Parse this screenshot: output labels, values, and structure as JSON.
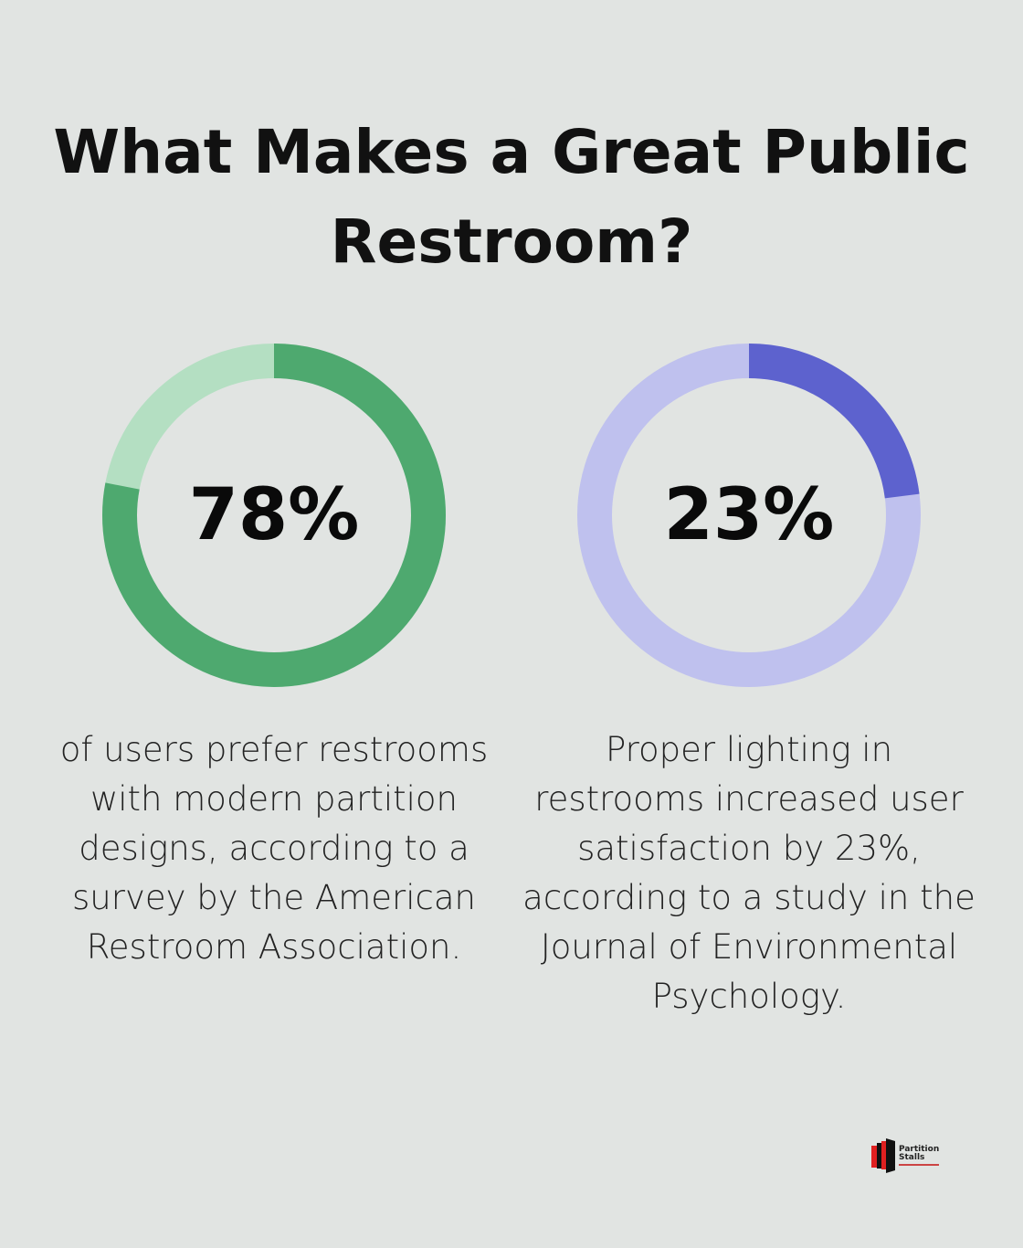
{
  "title": "What Makes a Great Public Restroom?",
  "chart_data": [
    {
      "type": "pie",
      "variant": "donut",
      "label": "78%",
      "value": 78,
      "colors": {
        "filled": "#4ea96f",
        "remaining": "#b4dfc2"
      },
      "description": "of users prefer restrooms with modern partition designs, according to a survey by the American Restroom Association."
    },
    {
      "type": "pie",
      "variant": "donut",
      "label": "23%",
      "value": 23,
      "colors": {
        "filled": "#5d62ce",
        "remaining": "#bfc1ee"
      },
      "description": "Proper lighting in restrooms increased user satisfaction by 23%, according to a study in the Journal of Environmental Psychology."
    }
  ],
  "logo": {
    "line1": "Partition",
    "line2": "Stalls"
  }
}
